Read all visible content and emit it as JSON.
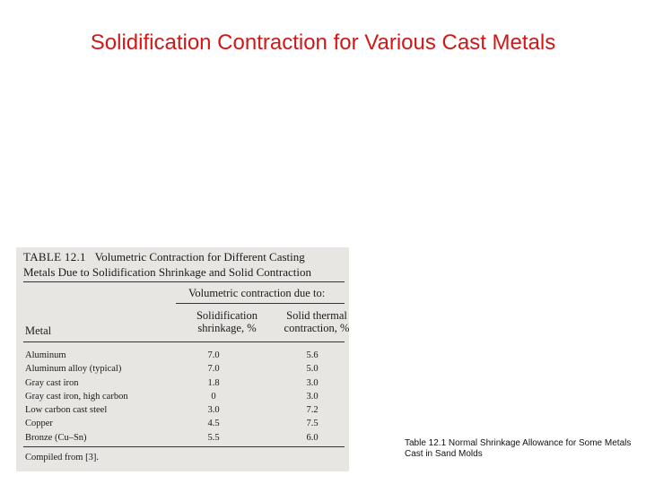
{
  "slide": {
    "title": "Solidification Contraction for Various Cast Metals",
    "side_caption": "Table 12.1  Normal Shrinkage Allowance for Some Metals Cast in Sand Molds"
  },
  "table": {
    "label": "TABLE 12.1",
    "title_line1": "Volumetric Contraction for Different Casting",
    "title_line2": "Metals Due to Solidification Shrinkage and Solid Contraction",
    "group_header": "Volumetric contraction due to:",
    "col_metal": "Metal",
    "col1_line1": "Solidification",
    "col1_line2": "shrinkage, %",
    "col2_line1": "Solid thermal",
    "col2_line2": "contraction, %",
    "rows": [
      {
        "metal": "Aluminum",
        "solidification": "7.0",
        "thermal": "5.6"
      },
      {
        "metal": "Aluminum alloy (typical)",
        "solidification": "7.0",
        "thermal": "5.0"
      },
      {
        "metal": "Gray cast iron",
        "solidification": "1.8",
        "thermal": "3.0"
      },
      {
        "metal": "Gray cast iron, high carbon",
        "solidification": "0",
        "thermal": "3.0"
      },
      {
        "metal": "Low carbon cast steel",
        "solidification": "3.0",
        "thermal": "7.2"
      },
      {
        "metal": "Copper",
        "solidification": "4.5",
        "thermal": "7.5"
      },
      {
        "metal": "Bronze (Cu–Sn)",
        "solidification": "5.5",
        "thermal": "6.0"
      }
    ],
    "source": "Compiled from [3]."
  }
}
